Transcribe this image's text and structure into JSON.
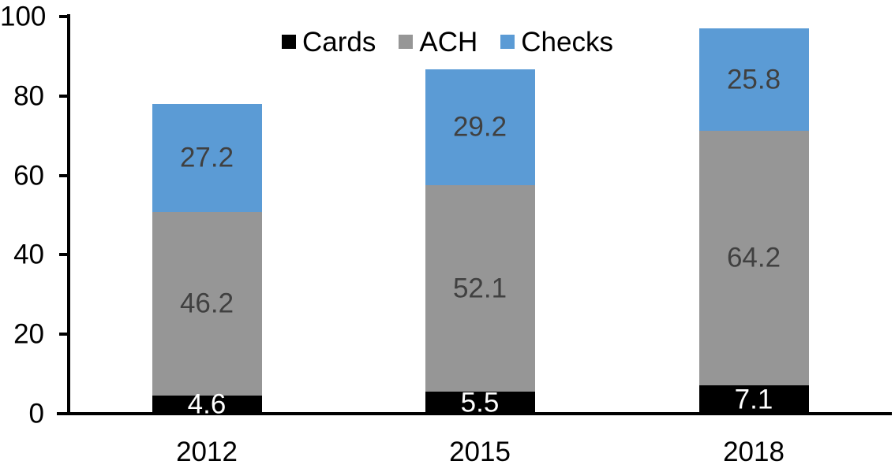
{
  "chart_data": {
    "type": "bar",
    "stacked": true,
    "categories": [
      "2012",
      "2015",
      "2018"
    ],
    "series": [
      {
        "name": "Cards",
        "color": "#000000",
        "label_color": "#FFFFFF",
        "values": [
          4.6,
          5.5,
          7.1
        ]
      },
      {
        "name": "ACH",
        "color": "#969696",
        "label_color": "#404040",
        "values": [
          46.2,
          52.1,
          64.2
        ]
      },
      {
        "name": "Checks",
        "color": "#5B9BD5",
        "label_color": "#404040",
        "values": [
          27.2,
          29.2,
          25.8
        ]
      }
    ],
    "totals": [
      78.0,
      86.8,
      97.1
    ],
    "ylim": [
      0,
      100
    ],
    "yticks": [
      0,
      20,
      40,
      60,
      80,
      100
    ],
    "grid": false,
    "legend": {
      "position": "top",
      "labels": [
        "Cards",
        "ACH",
        "Checks"
      ]
    },
    "axis_color": "#000000",
    "background": "#FFFFFF"
  }
}
